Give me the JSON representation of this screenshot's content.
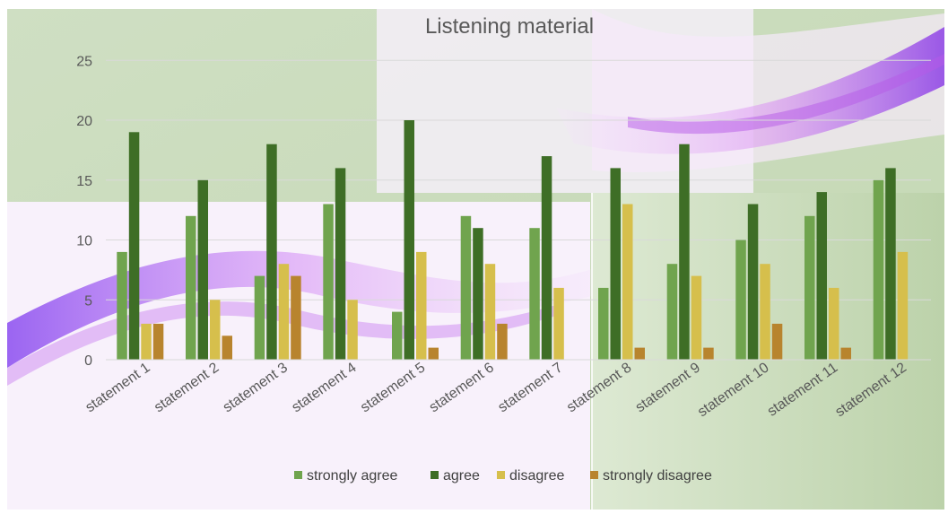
{
  "chart_data": {
    "type": "bar",
    "title": "Listening material",
    "xlabel": "",
    "ylabel": "",
    "ylim": [
      0,
      27
    ],
    "yticks": [
      0,
      5,
      10,
      15,
      20,
      25
    ],
    "grid": true,
    "legend_position": "bottom",
    "categories": [
      "statement 1",
      "statement 2",
      "statement 3",
      "statement 4",
      "statement 5",
      "statement 6",
      "statement 7",
      "statement 8",
      "statement 9",
      "statement 10",
      "statement 11",
      "statement 12"
    ],
    "series": [
      {
        "name": "strongly agree",
        "color": "#70a44e",
        "values": [
          9,
          12,
          7,
          13,
          4,
          12,
          11,
          6,
          8,
          10,
          12,
          15
        ]
      },
      {
        "name": "agree",
        "color": "#3e6e26",
        "values": [
          19,
          15,
          18,
          16,
          20,
          11,
          17,
          16,
          18,
          13,
          14,
          16
        ]
      },
      {
        "name": "disagree",
        "color": "#d6bf4c",
        "values": [
          3,
          5,
          8,
          5,
          9,
          8,
          6,
          13,
          7,
          8,
          6,
          9
        ]
      },
      {
        "name": "strongly disagree",
        "color": "#b8842e",
        "values": [
          3,
          2,
          7,
          0,
          1,
          3,
          0,
          1,
          1,
          3,
          1,
          0
        ]
      }
    ]
  }
}
